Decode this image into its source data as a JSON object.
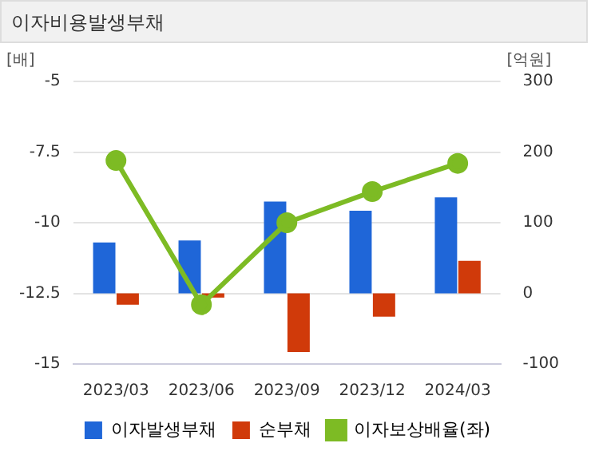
{
  "chart_data": {
    "type": "bar",
    "title": "이자비용발생부채",
    "ylabel": "[배]",
    "y2label": "[억원]",
    "categories": [
      "2023/03",
      "2023/06",
      "2023/09",
      "2023/12",
      "2024/03"
    ],
    "series": [
      {
        "name": "이자발생부채",
        "axis": "y2",
        "color": "#1f66d8",
        "values": [
          72,
          75,
          130,
          117,
          136
        ]
      },
      {
        "name": "순부채",
        "axis": "y2",
        "color": "#d03a0a",
        "values": [
          -16,
          -6,
          -83,
          -33,
          46
        ]
      },
      {
        "name": "이자보상배율(좌)",
        "type": "line",
        "axis": "y",
        "color": "#7dbb24",
        "values": [
          -7.8,
          -12.9,
          -10.0,
          -8.9,
          -7.9
        ]
      }
    ],
    "ylim": [
      -15,
      -5
    ],
    "yticks": [
      -15,
      -12.5,
      -10,
      -7.5,
      -5
    ],
    "y2lim": [
      -100,
      300
    ],
    "y2ticks": [
      -100,
      0,
      100,
      200,
      300
    ],
    "grid": "y",
    "legend": "bottom",
    "marker": "circle"
  }
}
